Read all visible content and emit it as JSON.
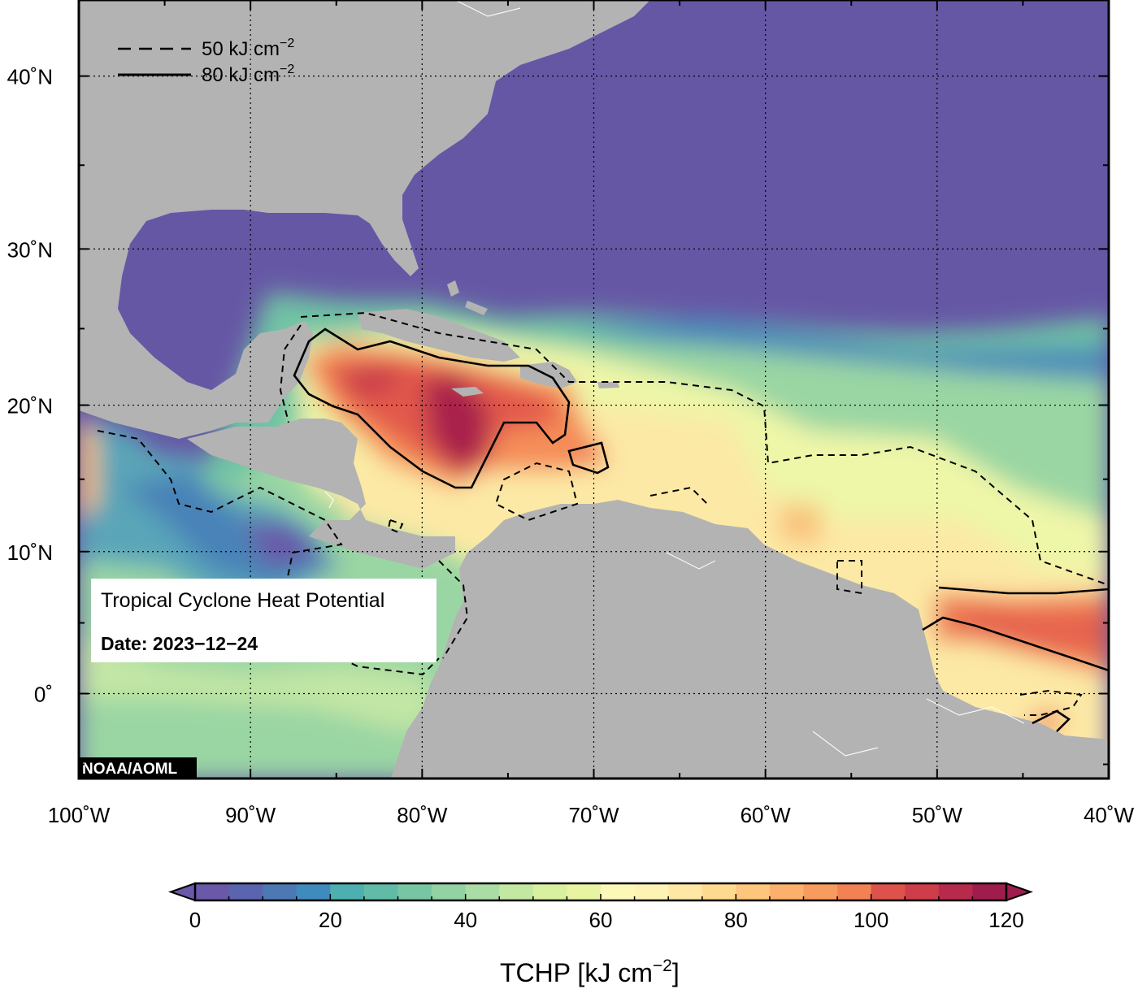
{
  "map": {
    "title": "Tropical Cyclone Heat Potential",
    "date_label": "Date: 2023−12−24",
    "credit": "NOAA/AOML",
    "lon_ticks": [
      "100˚W",
      "90˚W",
      "80˚W",
      "70˚W",
      "60˚W",
      "50˚W",
      "40˚W"
    ],
    "lat_ticks": [
      "40˚N",
      "30˚N",
      "20˚N",
      "10˚N",
      "0˚"
    ],
    "extent": {
      "lon": [
        -100,
        -40
      ],
      "lat": [
        -6,
        44
      ]
    },
    "projection": "mercator",
    "land_color": "#b3b3b3",
    "low_color": "#6657a5",
    "gridlines": "dotted"
  },
  "legend": {
    "dashed_label": "50 kJ cm",
    "solid_label": "80 kJ cm",
    "exponent": "−2"
  },
  "colorbar": {
    "title": "TCHP [kJ cm",
    "title_exponent": "−2",
    "title_close": "]",
    "ticks": [
      "0",
      "20",
      "40",
      "60",
      "80",
      "100",
      "120"
    ],
    "range": [
      0,
      120
    ],
    "step": 5,
    "extend": "both",
    "colors": [
      "#6a58a8",
      "#5b64ae",
      "#4c78b4",
      "#3f8bbd",
      "#3f9fc0",
      "#4eafb0",
      "#62bba7",
      "#78c5a3",
      "#93d2a3",
      "#aadca5",
      "#c3e8a2",
      "#d8f09f",
      "#e8f4a2",
      "#f3f7ad",
      "#fbf8b8",
      "#fdf3b4",
      "#fee8a4",
      "#fed990",
      "#fdc67c",
      "#fbb16b",
      "#f89b5e",
      "#f28254",
      "#e96a4f",
      "#dd534b",
      "#cd3e4a",
      "#b82a4c",
      "#9f1d4c"
    ]
  }
}
